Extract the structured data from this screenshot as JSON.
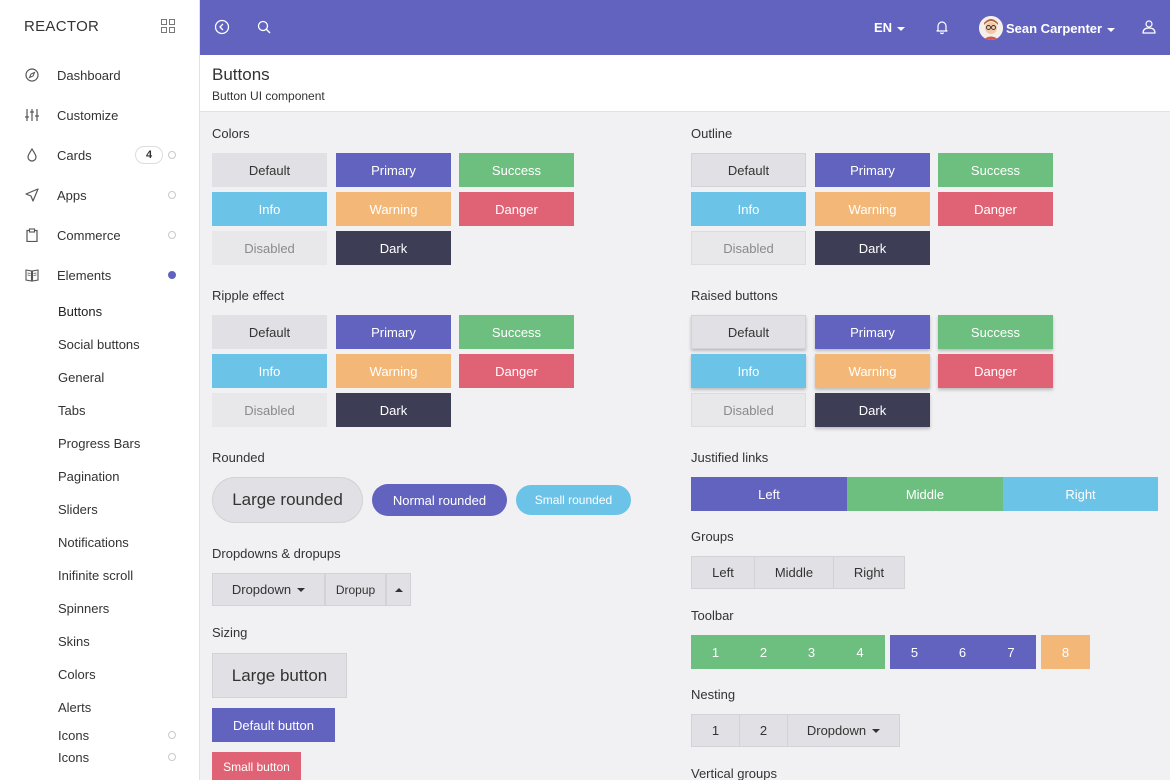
{
  "brand": "REACTOR",
  "nav": [
    {
      "label": "Dashboard"
    },
    {
      "label": "Customize"
    },
    {
      "label": "Cards",
      "badge": "4"
    },
    {
      "label": "Apps"
    },
    {
      "label": "Commerce"
    },
    {
      "label": "Elements"
    }
  ],
  "subnav": [
    "Buttons",
    "Social buttons",
    "General",
    "Tabs",
    "Progress Bars",
    "Pagination",
    "Sliders",
    "Notifications",
    "Inifinite scroll",
    "Spinners",
    "Skins",
    "Colors",
    "Alerts",
    "Icons",
    "Icons"
  ],
  "topbar": {
    "lang": "EN",
    "user": "Sean Carpenter"
  },
  "page": {
    "title": "Buttons",
    "subtitle": "Button UI component"
  },
  "colors_section": {
    "title": "Colors",
    "default": "Default",
    "primary": "Primary",
    "success": "Success",
    "info": "Info",
    "warning": "Warning",
    "danger": "Danger",
    "disabled": "Disabled",
    "dark": "Dark"
  },
  "outline_section": {
    "title": "Outline",
    "default": "Default",
    "primary": "Primary",
    "success": "Success",
    "info": "Info",
    "warning": "Warning",
    "danger": "Danger",
    "disabled": "Disabled",
    "dark": "Dark"
  },
  "ripple_section": {
    "title": "Ripple effect",
    "default": "Default",
    "primary": "Primary",
    "success": "Success",
    "info": "Info",
    "warning": "Warning",
    "danger": "Danger",
    "disabled": "Disabled",
    "dark": "Dark"
  },
  "raised_section": {
    "title": "Raised buttons",
    "default": "Default",
    "primary": "Primary",
    "success": "Success",
    "info": "Info",
    "warning": "Warning",
    "danger": "Danger",
    "disabled": "Disabled",
    "dark": "Dark"
  },
  "rounded_section": {
    "title": "Rounded",
    "large": "Large rounded",
    "normal": "Normal rounded",
    "small": "Small rounded"
  },
  "dropdown_section": {
    "title": "Dropdowns & dropups",
    "dropdown": "Dropdown",
    "dropup": "Dropup"
  },
  "sizing_section": {
    "title": "Sizing",
    "large": "Large button",
    "default": "Default button",
    "small": "Small button"
  },
  "justified_section": {
    "title": "Justified links",
    "left": "Left",
    "middle": "Middle",
    "right": "Right"
  },
  "groups_section": {
    "title": "Groups",
    "left": "Left",
    "middle": "Middle",
    "right": "Right"
  },
  "toolbar_section": {
    "title": "Toolbar",
    "buttons": [
      "1",
      "2",
      "3",
      "4",
      "5",
      "6",
      "7",
      "8"
    ]
  },
  "nesting_section": {
    "title": "Nesting",
    "one": "1",
    "two": "2",
    "dropdown": "Dropdown"
  },
  "vertical_section": {
    "title": "Vertical groups"
  },
  "icons": {
    "grid": "grid-icon",
    "back": "back-circle-icon",
    "search": "search-icon",
    "bell": "bell-icon",
    "person": "person-icon",
    "nav": [
      "compass-icon",
      "sliders-icon",
      "droplet-icon",
      "send-icon",
      "clipboard-icon",
      "book-icon"
    ]
  },
  "colors": {
    "primary": "#6163bf",
    "success": "#6dbf7f",
    "info": "#6bc4e7",
    "warning": "#f3b878",
    "danger": "#e06375",
    "dark": "#3e3d56",
    "default": "#e1e0e4"
  }
}
